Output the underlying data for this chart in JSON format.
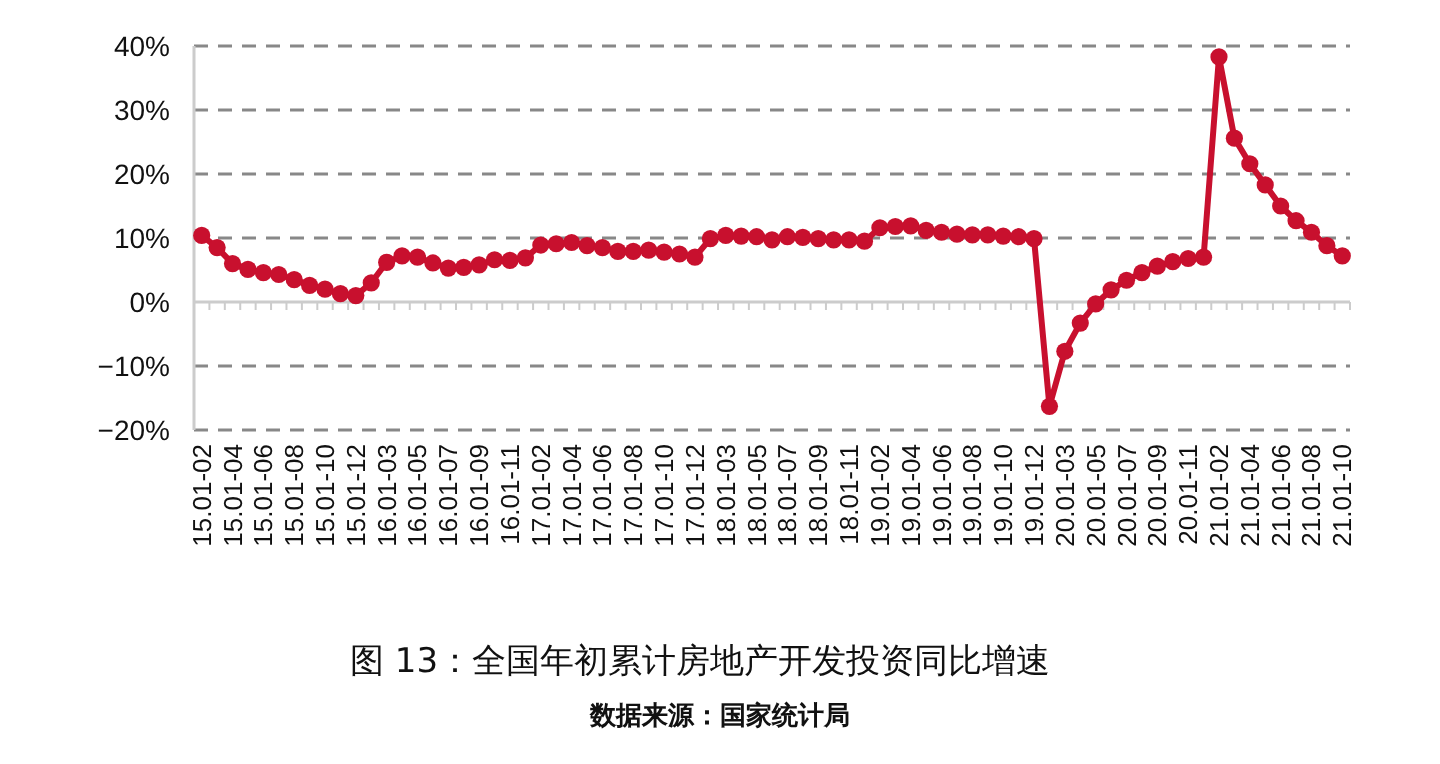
{
  "chart_data": {
    "type": "line",
    "title": "图 13：全国年初累计房地产开发投资同比增速",
    "annotations": [
      "数据来源：国家统计局"
    ],
    "categories": [
      "15.01-02",
      null,
      "15.01-04",
      null,
      "15.01-06",
      null,
      "15.01-08",
      null,
      "15.01-10",
      null,
      "15.01-12",
      null,
      "16.01-03",
      null,
      "16.01-05",
      null,
      "16.01-07",
      null,
      "16.01-09",
      null,
      "16.01-11",
      null,
      "17.01-02",
      null,
      "17.01-04",
      null,
      "17.01-06",
      null,
      "17.01-08",
      null,
      "17.01-10",
      null,
      "17.01-12",
      null,
      "18.01-03",
      null,
      "18.01-05",
      null,
      "18.01-07",
      null,
      "18.01-09",
      null,
      "18.01-11",
      null,
      "19.01-02",
      null,
      "19.01-04",
      null,
      "19.01-06",
      null,
      "19.01-08",
      null,
      "19.01-10",
      null,
      "19.01-12",
      null,
      "20.01-03",
      null,
      "20.01-05",
      null,
      "20.01-07",
      null,
      "20.01-09",
      null,
      "20.01-11",
      null,
      "21.01-02",
      null,
      "21.01-04",
      null,
      "21.01-06",
      null,
      "21.01-08",
      null,
      "21.01-10"
    ],
    "series": [
      {
        "color": "#c8102e",
        "values": [
          10.4,
          8.5,
          6.0,
          5.1,
          4.6,
          4.3,
          3.5,
          2.6,
          2.0,
          1.3,
          1.0,
          3.0,
          6.2,
          7.2,
          7.0,
          6.1,
          5.3,
          5.4,
          5.8,
          6.6,
          6.5,
          6.9,
          8.9,
          9.1,
          9.3,
          8.8,
          8.5,
          7.9,
          7.9,
          8.1,
          7.8,
          7.5,
          7.0,
          9.9,
          10.4,
          10.3,
          10.2,
          9.7,
          10.2,
          10.1,
          9.9,
          9.7,
          9.7,
          9.5,
          11.6,
          11.8,
          11.9,
          11.2,
          10.9,
          10.6,
          10.5,
          10.5,
          10.3,
          10.2,
          9.9,
          -16.3,
          -7.7,
          -3.3,
          -0.3,
          1.9,
          3.4,
          4.6,
          5.6,
          6.3,
          6.8,
          7.0,
          38.3,
          25.6,
          21.6,
          18.3,
          15.0,
          12.7,
          10.9,
          8.8,
          7.2
        ]
      }
    ],
    "ylim": [
      -20,
      40
    ],
    "yticks": [
      {
        "value": -20,
        "label": "−20%"
      },
      {
        "value": -10,
        "label": "−10%"
      },
      {
        "value": 0,
        "label": "0%"
      },
      {
        "value": 10,
        "label": "10%"
      },
      {
        "value": 20,
        "label": "20%"
      },
      {
        "value": 30,
        "label": "30%"
      },
      {
        "value": 40,
        "label": "40%"
      }
    ],
    "grid": "y",
    "marker": "circle",
    "line_style": "solid"
  }
}
